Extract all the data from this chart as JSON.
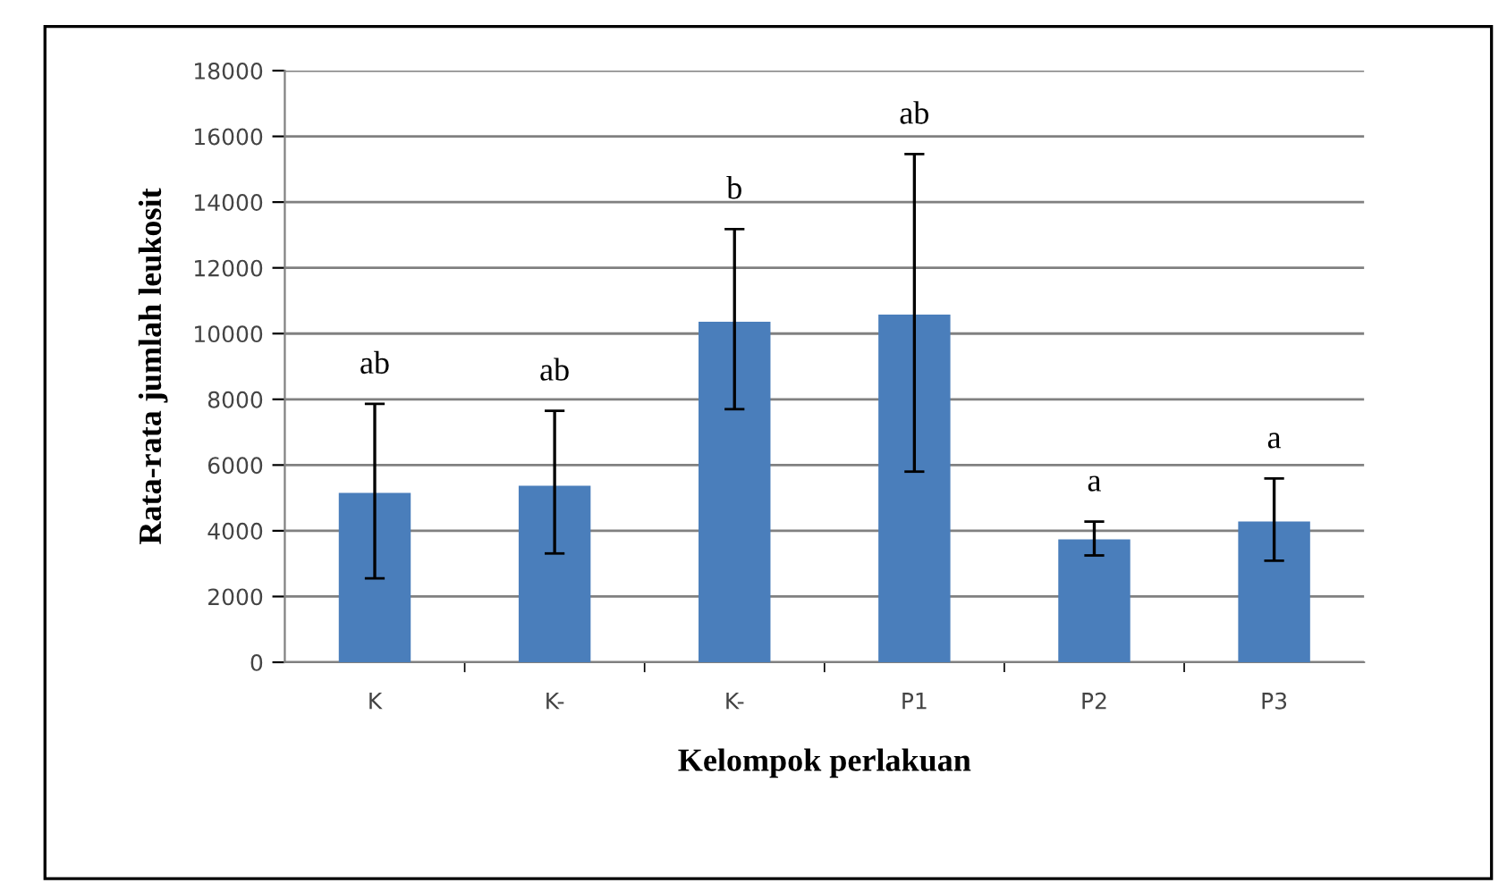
{
  "chart_data": {
    "type": "bar",
    "xlabel": "Kelompok perlakuan",
    "ylabel": "Rata-rata jumlah leukosit",
    "categories": [
      "K",
      "K-",
      "K-",
      "P1",
      "P2",
      "P3"
    ],
    "values": [
      5150,
      5370,
      10360,
      10580,
      3740,
      4280
    ],
    "errors": [
      [
        2550,
        7860
      ],
      [
        3310,
        7650
      ],
      [
        7700,
        13180
      ],
      [
        5800,
        15460
      ],
      [
        3250,
        4280
      ],
      [
        3090,
        5590
      ]
    ],
    "color": "#4a7ebb",
    "ylim": [
      0,
      18000
    ],
    "yticks": [
      0,
      2000,
      4000,
      6000,
      8000,
      10000,
      12000,
      14000,
      16000,
      18000
    ],
    "grid": "y",
    "legend": false,
    "annotations": [
      "ab",
      "ab",
      "b",
      "ab",
      "a",
      "a"
    ]
  }
}
